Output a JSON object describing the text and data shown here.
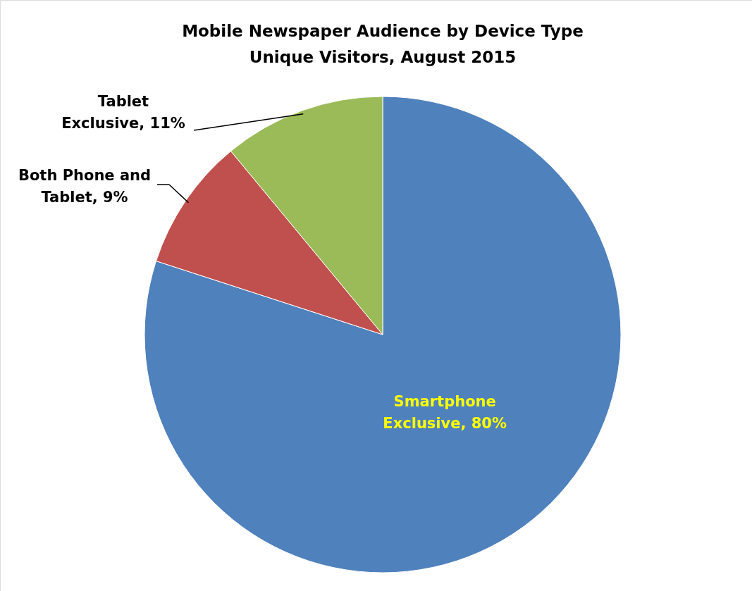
{
  "chart_data": {
    "type": "pie",
    "title": "Mobile Newspaper Audience by Device Type\nUnique Visitors,  August 2015",
    "categories": [
      "Smartphone Exclusive",
      "Both Phone and Tablet",
      "Tablet Exclusive"
    ],
    "values": [
      80,
      9,
      11
    ],
    "value_labels": [
      "80%",
      "9%",
      "11%"
    ],
    "colors": [
      "#4f81bd",
      "#c0504d",
      "#9bbb59"
    ],
    "data_labels": true
  }
}
